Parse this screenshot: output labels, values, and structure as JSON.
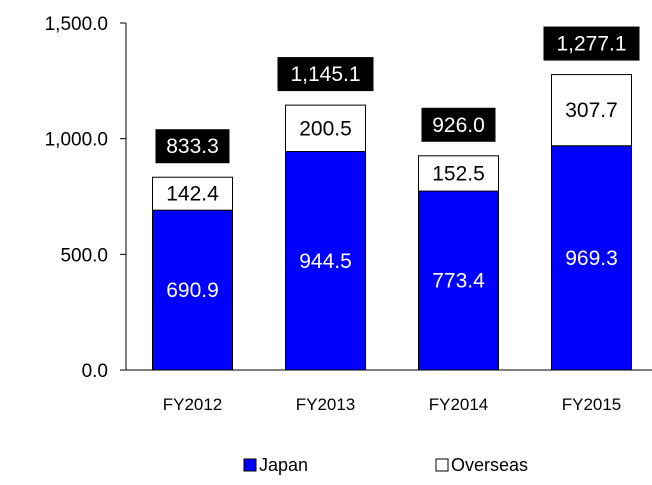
{
  "chart_data": {
    "type": "bar",
    "stacked": true,
    "categories": [
      "FY2012",
      "FY2013",
      "FY2014",
      "FY2015"
    ],
    "series": [
      {
        "name": "Japan",
        "values": [
          690.9,
          944.5,
          773.4,
          969.3
        ],
        "labels": [
          "690.9",
          "944.5",
          "773.4",
          "969.3"
        ],
        "color": "#0000ff"
      },
      {
        "name": "Overseas",
        "values": [
          142.4,
          200.5,
          152.5,
          307.7
        ],
        "labels": [
          "142.4",
          "200.5",
          "152.5",
          "307.7"
        ],
        "color": "#ffffff"
      }
    ],
    "totals": [
      833.3,
      1145.1,
      926.0,
      1277.1
    ],
    "total_labels": [
      "833.3",
      "1,145.1",
      "926.0",
      "1,277.1"
    ],
    "ylim": [
      0,
      1500
    ],
    "yticks": [
      0,
      500,
      1000,
      1500
    ],
    "ytick_labels": [
      "0.0",
      "500.0",
      "1,000.0",
      "1,500.0"
    ],
    "title": "",
    "xlabel": "",
    "ylabel": "",
    "grid": false,
    "legend": "bottom-center"
  }
}
